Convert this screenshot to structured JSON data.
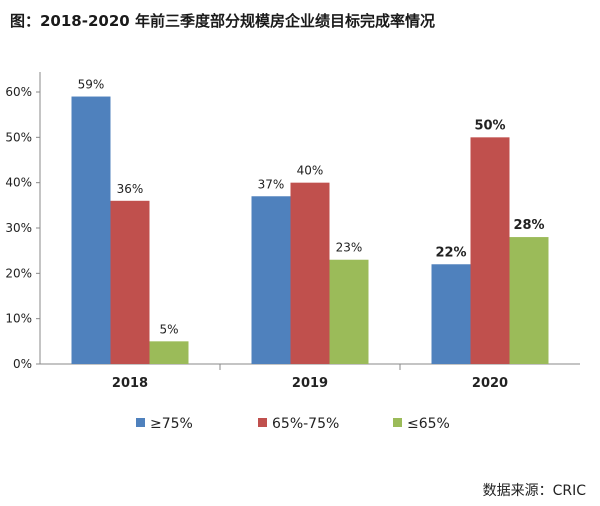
{
  "title": "图：2018-2020 年前三季度部分规模房企业绩目标完成率情况",
  "source": "数据来源：CRIC",
  "chart_data": {
    "type": "bar",
    "title": "",
    "xlabel": "",
    "ylabel": "",
    "ylim": [
      0,
      60
    ],
    "yticks": [
      "0%",
      "10%",
      "20%",
      "30%",
      "40%",
      "50%",
      "60%"
    ],
    "categories": [
      "2018",
      "2019",
      "2020"
    ],
    "series": [
      {
        "name": "≥75%",
        "color": "#4f81bd",
        "values": [
          59,
          37,
          22
        ],
        "labels": [
          "59%",
          "37%",
          "22%"
        ]
      },
      {
        "name": "65%-75%",
        "color": "#c0504d",
        "values": [
          36,
          40,
          50
        ],
        "labels": [
          "36%",
          "40%",
          "50%"
        ]
      },
      {
        "name": "≤65%",
        "color": "#9bbb59",
        "values": [
          5,
          23,
          28
        ],
        "labels": [
          "5%",
          "23%",
          "28%"
        ]
      }
    ],
    "bold_label_categories": [
      "2020"
    ],
    "legend_position": "bottom",
    "grid": false
  }
}
